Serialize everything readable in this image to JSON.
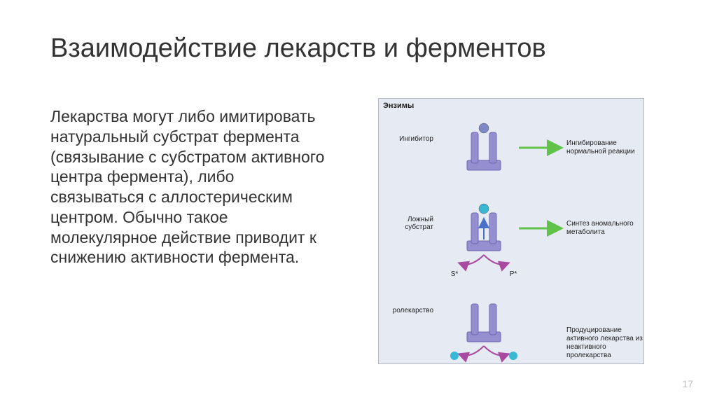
{
  "title": "Взаимодействие лекарств и ферментов",
  "body": "Лекарства могут либо имитировать натуральный субстрат фермента (связывание с субстратом активного центра фермента), либо связываться с аллостерическим центром. Обычно такое молекулярное действие приводит к снижению активности фермента.",
  "page_number": "17",
  "diagram": {
    "panel_title": "Энзимы",
    "background": "#e6eaf2",
    "border": "#b0b6c2",
    "enzyme_color": "#958fcf",
    "enzyme_shadow": "#6d66b5",
    "ball_inhibitor": "#7d88c9",
    "ball_cyan": "#39b8d6",
    "arrow_green": "#5fc34a",
    "arrow_purple": "#a74aa0",
    "arrow_blue": "#4a6fc9",
    "groups": [
      {
        "left_label": "Ингибитор",
        "right_label": "Ингибирование нормальной реакции",
        "top_ball_color": "#7d88c9",
        "show_blue_arrow": false,
        "show_bottom_curve": false,
        "show_green_arrow": true
      },
      {
        "left_label": "Ложный субстрат",
        "right_label": "Синтез аномального метаболита",
        "top_ball_color": "#39b8d6",
        "show_blue_arrow": true,
        "show_bottom_curve": true,
        "bottom_left_label": "S*",
        "bottom_right_label": "P*",
        "show_green_arrow": true
      },
      {
        "left_label": "ролекарство",
        "right_label": "Продуцирование активного лекарства из неактивного пролекарства",
        "top_ball_color": null,
        "show_blue_arrow": false,
        "show_bottom_curve": true,
        "show_bottom_balls": true,
        "show_green_arrow": false
      }
    ]
  },
  "fonts": {
    "title_size": 38,
    "body_size": 23,
    "label_size": 10
  }
}
